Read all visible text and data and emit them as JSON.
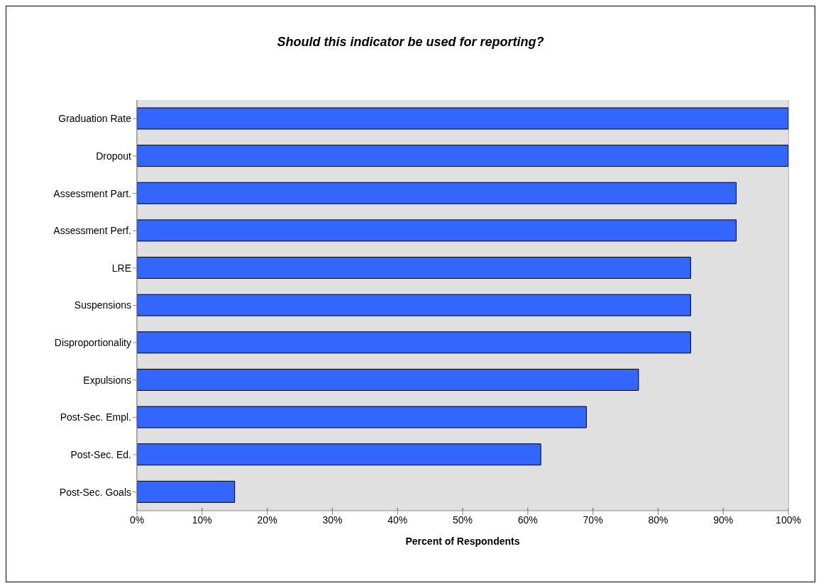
{
  "chart_data": {
    "type": "bar",
    "orientation": "horizontal",
    "title": "Should this indicator be used for reporting?",
    "xlabel": "Percent of Respondents",
    "categories": [
      "Graduation Rate",
      "Dropout",
      "Assessment Part.",
      "Assessment Perf.",
      "LRE",
      "Suspensions",
      "Disproportionality",
      "Expulsions",
      "Post-Sec. Empl.",
      "Post-Sec. Ed.",
      "Post-Sec. Goals"
    ],
    "values": [
      100,
      100,
      92,
      92,
      85,
      85,
      85,
      77,
      69,
      62,
      15
    ],
    "color": "#3366ff",
    "xlim": [
      0,
      100
    ],
    "xticks": [
      {
        "value": 0,
        "label": "0%"
      },
      {
        "value": 10,
        "label": "10%"
      },
      {
        "value": 20,
        "label": "20%"
      },
      {
        "value": 30,
        "label": "30%"
      },
      {
        "value": 40,
        "label": "40%"
      },
      {
        "value": 50,
        "label": "50%"
      },
      {
        "value": 60,
        "label": "60%"
      },
      {
        "value": 70,
        "label": "70%"
      },
      {
        "value": 80,
        "label": "80%"
      },
      {
        "value": 90,
        "label": "90%"
      },
      {
        "value": 100,
        "label": "100%"
      }
    ],
    "grid": "x",
    "legend": false
  }
}
